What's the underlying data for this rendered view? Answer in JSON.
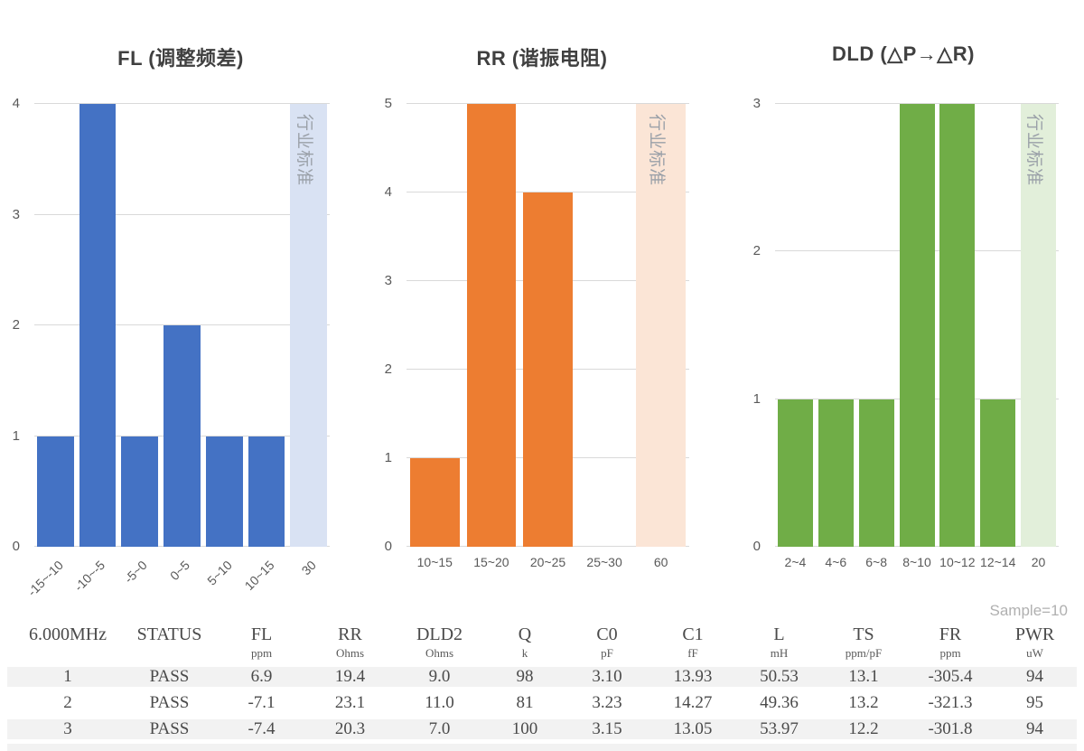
{
  "sample_label": "Sample=10",
  "chart_data": [
    {
      "type": "bar",
      "title": "FL (调整频差)",
      "categories": [
        "-15~-10",
        "-10~-5",
        "-5~0",
        "0~5",
        "5~10",
        "10~15"
      ],
      "values": [
        1,
        4,
        1,
        2,
        1,
        1
      ],
      "band_category": "30",
      "band_label": "行业标准",
      "ylim": [
        0,
        4
      ],
      "yticks": [
        0,
        1,
        2,
        3,
        4
      ],
      "bar_color": "#4472C4",
      "band_color": "#D9E2F3",
      "rotated_xlabels": true,
      "xlabel": "",
      "ylabel": "",
      "grid": true,
      "legend": "none"
    },
    {
      "type": "bar",
      "title": "RR (谐振电阻)",
      "categories": [
        "10~15",
        "15~20",
        "20~25",
        "25~30"
      ],
      "values": [
        1,
        5,
        4,
        0
      ],
      "band_category": "60",
      "band_label": "行业标准",
      "ylim": [
        0,
        5
      ],
      "yticks": [
        0,
        1,
        2,
        3,
        4,
        5
      ],
      "bar_color": "#ED7D31",
      "band_color": "#FBE5D6",
      "rotated_xlabels": false,
      "xlabel": "",
      "ylabel": "",
      "grid": true,
      "legend": "none"
    },
    {
      "type": "bar",
      "title": "DLD (△P→△R)",
      "categories": [
        "2~4",
        "4~6",
        "6~8",
        "8~10",
        "10~12",
        "12~14"
      ],
      "values": [
        1,
        1,
        1,
        3,
        3,
        1
      ],
      "band_category": "20",
      "band_label": "行业标准",
      "ylim": [
        0,
        3
      ],
      "yticks": [
        0,
        1,
        2,
        3
      ],
      "bar_color": "#70AD47",
      "band_color": "#E2EFDA",
      "rotated_xlabels": false,
      "xlabel": "",
      "ylabel": "",
      "grid": true,
      "legend": "none"
    }
  ],
  "table": {
    "frequency": "6.000MHz",
    "columns": [
      {
        "label": "STATUS",
        "unit": ""
      },
      {
        "label": "FL",
        "unit": "ppm"
      },
      {
        "label": "RR",
        "unit": "Ohms"
      },
      {
        "label": "DLD2",
        "unit": "Ohms"
      },
      {
        "label": "Q",
        "unit": "k"
      },
      {
        "label": "C0",
        "unit": "pF"
      },
      {
        "label": "C1",
        "unit": "fF"
      },
      {
        "label": "L",
        "unit": "mH"
      },
      {
        "label": "TS",
        "unit": "ppm/pF"
      },
      {
        "label": "FR",
        "unit": "ppm"
      },
      {
        "label": "PWR",
        "unit": "uW"
      }
    ],
    "rows": [
      {
        "index": "1",
        "status": "PASS",
        "values": [
          "6.9",
          "19.4",
          "9.0",
          "98",
          "3.10",
          "13.93",
          "50.53",
          "13.1",
          "-305.4",
          "94"
        ]
      },
      {
        "index": "2",
        "status": "PASS",
        "values": [
          "-7.1",
          "23.1",
          "11.0",
          "81",
          "3.23",
          "14.27",
          "49.36",
          "13.2",
          "-321.3",
          "95"
        ]
      },
      {
        "index": "3",
        "status": "PASS",
        "values": [
          "-7.4",
          "20.3",
          "7.0",
          "100",
          "3.15",
          "13.05",
          "53.97",
          "12.2",
          "-301.8",
          "94"
        ]
      }
    ]
  }
}
